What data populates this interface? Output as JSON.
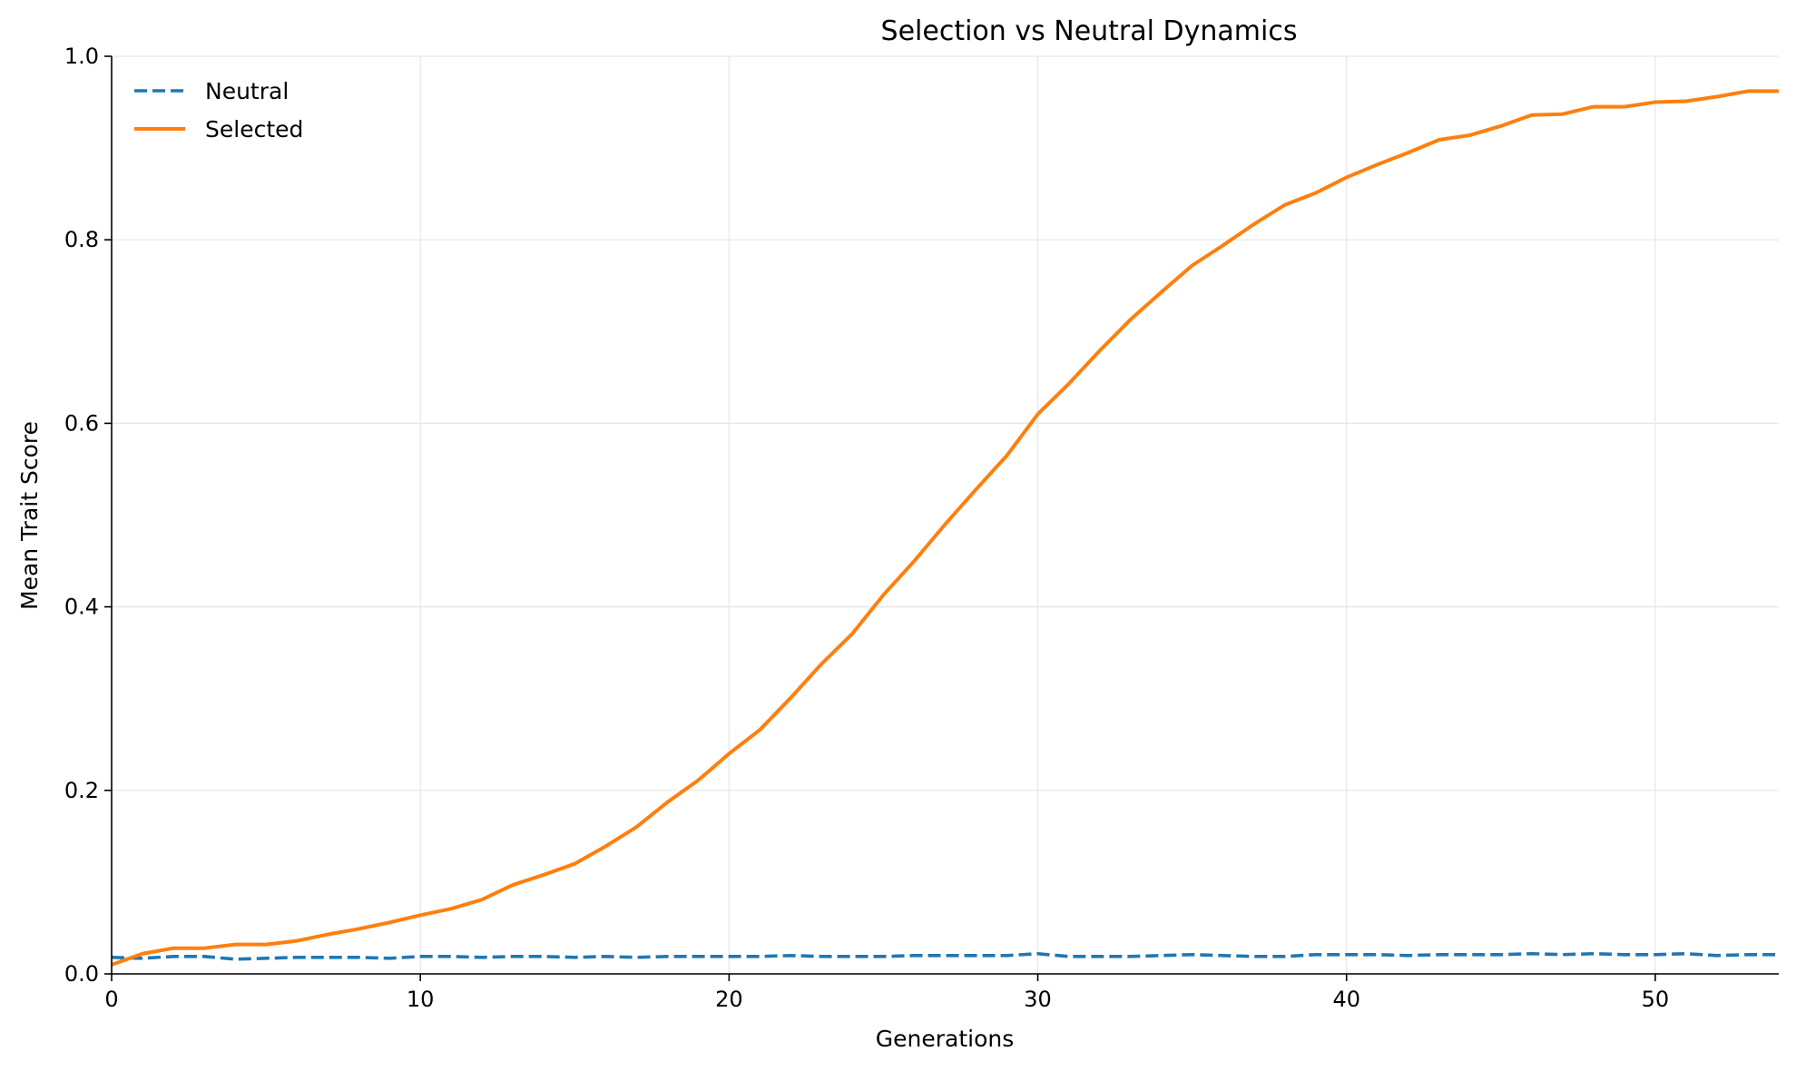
{
  "chart_data": {
    "type": "line",
    "title": "Selection vs Neutral Dynamics",
    "xlabel": "Generations",
    "ylabel": "Mean Trait Score",
    "xlim": [
      0,
      54
    ],
    "ylim": [
      0,
      1.0
    ],
    "x_ticks": [
      0,
      10,
      20,
      30,
      40,
      50
    ],
    "y_ticks": [
      0.0,
      0.2,
      0.4,
      0.6,
      0.8,
      1.0
    ],
    "x_tick_labels": [
      "0",
      "10",
      "20",
      "30",
      "40",
      "50"
    ],
    "y_tick_labels": [
      "0.0",
      "0.2",
      "0.4",
      "0.6",
      "0.8",
      "1.0"
    ],
    "grid": true,
    "legend_position": "top-left",
    "x": [
      0,
      1,
      2,
      3,
      4,
      5,
      6,
      7,
      8,
      9,
      10,
      11,
      12,
      13,
      14,
      15,
      16,
      17,
      18,
      19,
      20,
      21,
      22,
      23,
      24,
      25,
      26,
      27,
      28,
      29,
      30,
      31,
      32,
      33,
      34,
      35,
      36,
      37,
      38,
      39,
      40,
      41,
      42,
      43,
      44,
      45,
      46,
      47,
      48,
      49,
      50,
      51,
      52,
      53,
      54
    ],
    "series": [
      {
        "name": "Neutral",
        "color": "#1f77b4",
        "style": "dashed",
        "values": [
          0.018,
          0.017,
          0.019,
          0.019,
          0.016,
          0.017,
          0.018,
          0.018,
          0.018,
          0.017,
          0.019,
          0.019,
          0.018,
          0.019,
          0.019,
          0.018,
          0.019,
          0.018,
          0.019,
          0.019,
          0.019,
          0.019,
          0.02,
          0.019,
          0.019,
          0.019,
          0.02,
          0.02,
          0.02,
          0.02,
          0.022,
          0.019,
          0.019,
          0.019,
          0.02,
          0.021,
          0.02,
          0.019,
          0.019,
          0.021,
          0.021,
          0.021,
          0.02,
          0.021,
          0.021,
          0.021,
          0.022,
          0.021,
          0.022,
          0.021,
          0.021,
          0.022,
          0.02,
          0.021,
          0.021
        ]
      },
      {
        "name": "Selected",
        "color": "#ff7f0e",
        "style": "solid",
        "values": [
          0.01,
          0.022,
          0.028,
          0.028,
          0.032,
          0.032,
          0.036,
          0.043,
          0.049,
          0.056,
          0.064,
          0.071,
          0.081,
          0.097,
          0.108,
          0.12,
          0.139,
          0.16,
          0.187,
          0.211,
          0.24,
          0.266,
          0.301,
          0.338,
          0.371,
          0.413,
          0.45,
          0.49,
          0.528,
          0.565,
          0.61,
          0.643,
          0.679,
          0.713,
          0.743,
          0.772,
          0.794,
          0.817,
          0.838,
          0.851,
          0.868,
          0.882,
          0.895,
          0.909,
          0.914,
          0.924,
          0.936,
          0.937,
          0.945,
          0.945,
          0.95,
          0.951,
          0.956,
          0.962,
          0.962
        ]
      }
    ]
  }
}
